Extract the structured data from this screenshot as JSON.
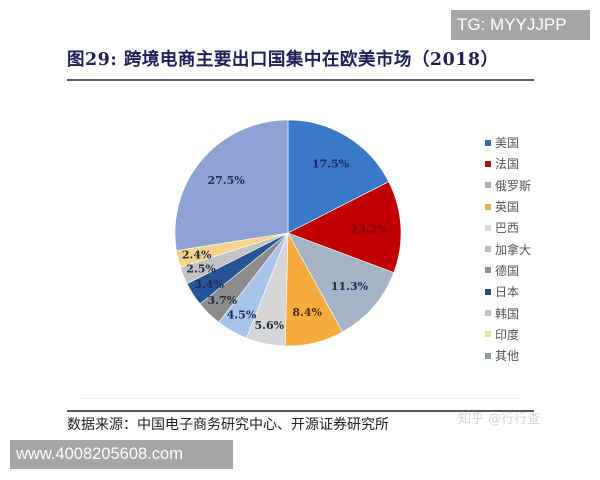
{
  "watermarks": {
    "top_right": "TG: MYYJJPP",
    "bottom_left": "www.4008205608.com",
    "faint": "知乎 @行行查"
  },
  "figure": {
    "title": "图29:  跨境电商主要出口国集中在欧美市场（2018）",
    "source": "数据来源：中国电子商务研究中心、开源证券研究所"
  },
  "chart_data": {
    "type": "pie",
    "title": "图29: 跨境电商主要出口国集中在欧美市场（2018）",
    "start_angle": "12 o'clock, clockwise",
    "legend_position": "right",
    "categories": [
      "美国",
      "法国",
      "俄罗斯",
      "英国",
      "巴西",
      "加拿大",
      "德国",
      "日本",
      "韩国",
      "印度",
      "其他"
    ],
    "values": [
      17.5,
      13.2,
      11.3,
      8.4,
      5.6,
      4.5,
      3.7,
      3.4,
      2.5,
      2.4,
      27.5
    ],
    "labels": [
      "17.5%",
      "13.2%",
      "11.3%",
      "8.4%",
      "5.6%",
      "4.5%",
      "3.7%",
      "3.4%",
      "2.5%",
      "2.4%",
      "27.5%"
    ],
    "colors": [
      "#3a78c9",
      "#c00000",
      "#a5b4c4",
      "#f5ac3c",
      "#d6d6d6",
      "#a9c4e8",
      "#8c8c8c",
      "#245597",
      "#c3c3c3",
      "#f6d58a",
      "#8fa2d4"
    ],
    "label_colors": [
      "#1f2a5a",
      "#7a0000",
      "#1f2a5a",
      "#5a2a00",
      "#1f2a3a",
      "#1f2a5a",
      "#1f2a3a",
      "#1f2a5a",
      "#1f2a3a",
      "#1f2a3a",
      "#1f2a5a"
    ],
    "unit": "%"
  },
  "legend": {
    "items": [
      {
        "label": "美国",
        "color": "#3a68a8"
      },
      {
        "label": "法国",
        "color": "#a8121e"
      },
      {
        "label": "俄罗斯",
        "color": "#a9aeb3"
      },
      {
        "label": "英国",
        "color": "#e0b060"
      },
      {
        "label": "巴西",
        "color": "#d9d9d9"
      },
      {
        "label": "加拿大",
        "color": "#b3bfcc"
      },
      {
        "label": "德国",
        "color": "#8e8e8e"
      },
      {
        "label": "日本",
        "color": "#2b4a7a"
      },
      {
        "label": "韩国",
        "color": "#c4c4c4"
      },
      {
        "label": "印度",
        "color": "#e8e0a8"
      },
      {
        "label": "其他",
        "color": "#8e98ae"
      }
    ]
  }
}
